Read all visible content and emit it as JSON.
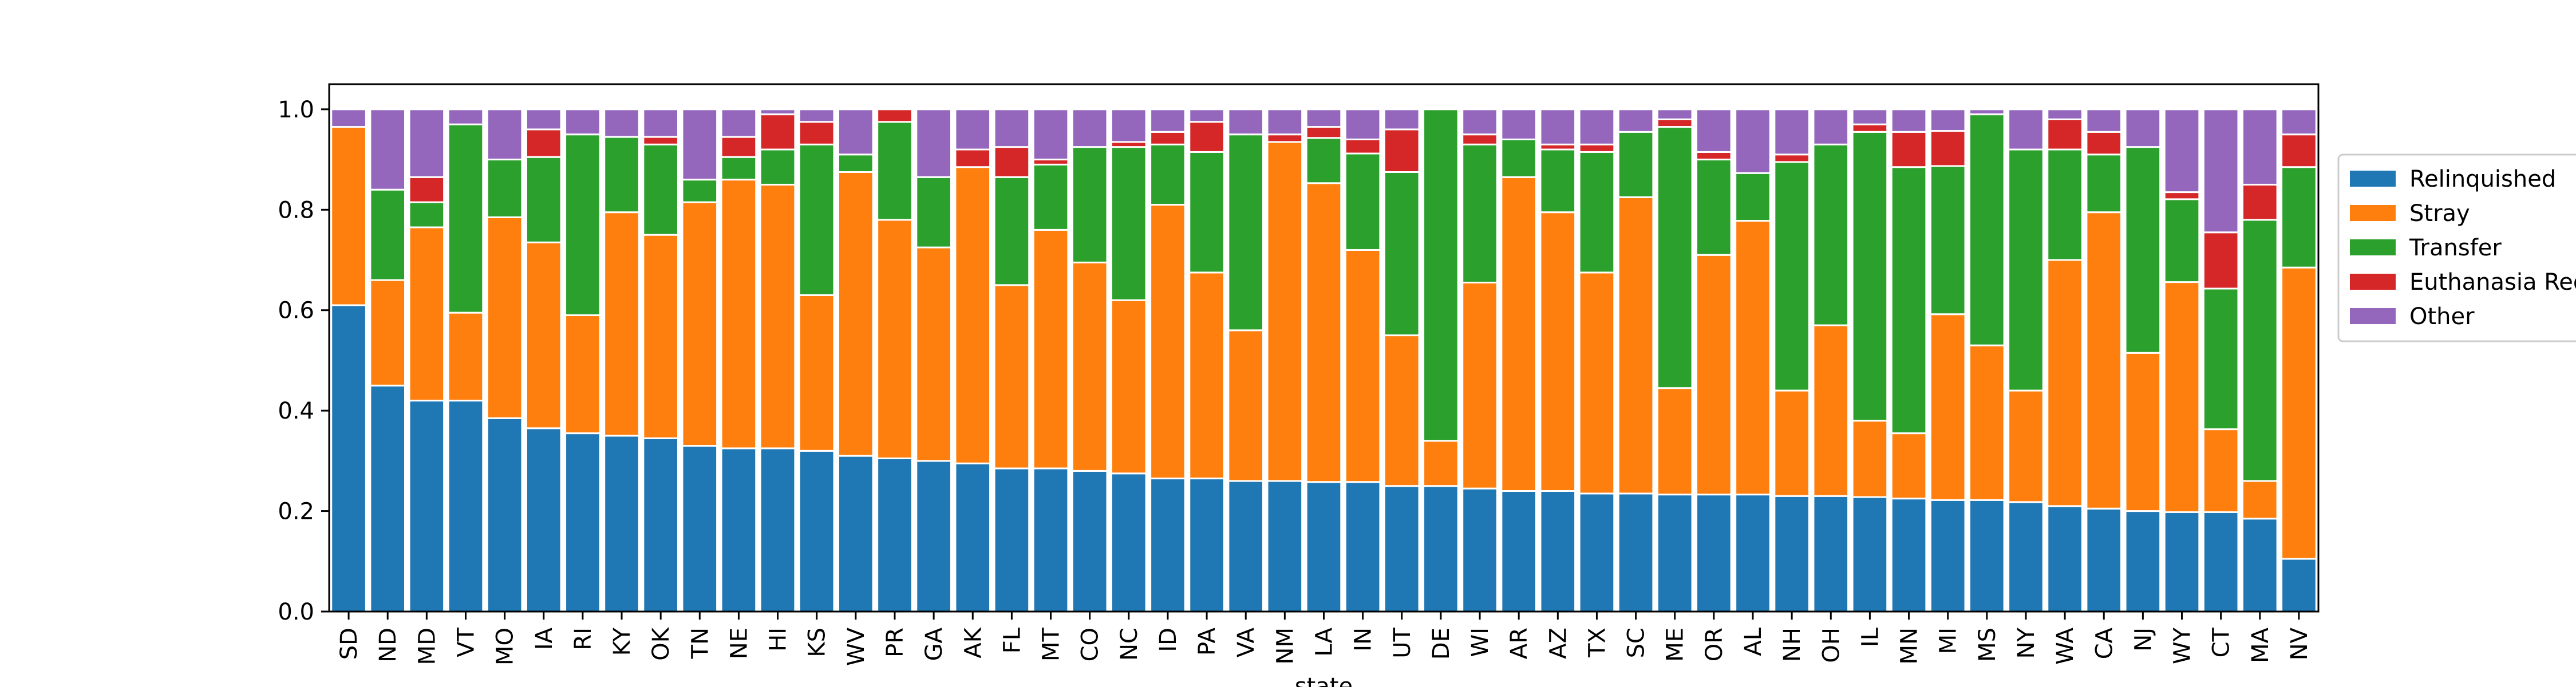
{
  "chart_data": {
    "type": "bar",
    "stacked": true,
    "title": "",
    "xlabel": "state",
    "ylabel": "",
    "ylim": [
      0,
      1.05
    ],
    "yticks": [
      0.0,
      0.2,
      0.4,
      0.6,
      0.8,
      1.0
    ],
    "ytick_labels": [
      "0.0",
      "0.2",
      "0.4",
      "0.6",
      "0.8",
      "1.0"
    ],
    "grid": false,
    "legend_position": "right-outside",
    "categories": [
      "SD",
      "ND",
      "MD",
      "VT",
      "MO",
      "IA",
      "RI",
      "KY",
      "OK",
      "TN",
      "NE",
      "HI",
      "KS",
      "WV",
      "PR",
      "GA",
      "AK",
      "FL",
      "MT",
      "CO",
      "NC",
      "ID",
      "PA",
      "VA",
      "NM",
      "LA",
      "IN",
      "UT",
      "DE",
      "WI",
      "AR",
      "AZ",
      "TX",
      "SC",
      "ME",
      "OR",
      "AL",
      "NH",
      "OH",
      "IL",
      "MN",
      "MI",
      "MS",
      "NY",
      "WA",
      "CA",
      "NJ",
      "WY",
      "CT",
      "MA",
      "NV"
    ],
    "series": [
      {
        "name": "Relinquished",
        "color": "#1f77b4",
        "values": [
          0.61,
          0.45,
          0.42,
          0.42,
          0.385,
          0.365,
          0.355,
          0.35,
          0.345,
          0.33,
          0.325,
          0.325,
          0.32,
          0.31,
          0.305,
          0.3,
          0.295,
          0.285,
          0.285,
          0.28,
          0.275,
          0.265,
          0.265,
          0.26,
          0.26,
          0.258,
          0.258,
          0.25,
          0.25,
          0.245,
          0.24,
          0.24,
          0.235,
          0.235,
          0.233,
          0.233,
          0.233,
          0.23,
          0.23,
          0.228,
          0.225,
          0.222,
          0.222,
          0.218,
          0.21,
          0.205,
          0.2,
          0.198,
          0.198,
          0.185,
          0.105
        ]
      },
      {
        "name": "Stray",
        "color": "#ff7f0e",
        "values": [
          0.355,
          0.21,
          0.345,
          0.175,
          0.4,
          0.37,
          0.235,
          0.445,
          0.405,
          0.485,
          0.535,
          0.525,
          0.31,
          0.565,
          0.475,
          0.425,
          0.59,
          0.365,
          0.475,
          0.415,
          0.345,
          0.545,
          0.41,
          0.3,
          0.675,
          0.595,
          0.462,
          0.3,
          0.09,
          0.41,
          0.625,
          0.555,
          0.44,
          0.59,
          0.212,
          0.477,
          0.545,
          0.21,
          0.34,
          0.152,
          0.13,
          0.37,
          0.308,
          0.222,
          0.49,
          0.59,
          0.315,
          0.458,
          0.165,
          0.075,
          0.58
        ]
      },
      {
        "name": "Transfer",
        "color": "#2ca02c",
        "values": [
          0.0,
          0.18,
          0.05,
          0.375,
          0.115,
          0.17,
          0.36,
          0.15,
          0.18,
          0.045,
          0.045,
          0.07,
          0.3,
          0.035,
          0.195,
          0.14,
          0.0,
          0.215,
          0.13,
          0.23,
          0.305,
          0.12,
          0.24,
          0.39,
          0.0,
          0.09,
          0.192,
          0.325,
          0.66,
          0.275,
          0.075,
          0.125,
          0.24,
          0.13,
          0.52,
          0.19,
          0.095,
          0.455,
          0.36,
          0.575,
          0.53,
          0.295,
          0.46,
          0.48,
          0.22,
          0.115,
          0.41,
          0.165,
          0.28,
          0.52,
          0.2
        ]
      },
      {
        "name": "Euthanasia Requested",
        "color": "#d62728",
        "values": [
          0.0,
          0.0,
          0.05,
          0.0,
          0.0,
          0.055,
          0.0,
          0.0,
          0.015,
          0.0,
          0.04,
          0.07,
          0.045,
          0.0,
          0.025,
          0.0,
          0.035,
          0.06,
          0.01,
          0.0,
          0.01,
          0.025,
          0.06,
          0.0,
          0.015,
          0.022,
          0.028,
          0.085,
          0.0,
          0.02,
          0.0,
          0.01,
          0.015,
          0.0,
          0.015,
          0.015,
          0.0,
          0.015,
          0.0,
          0.015,
          0.07,
          0.07,
          0.0,
          0.0,
          0.06,
          0.045,
          0.0,
          0.014,
          0.112,
          0.07,
          0.065
        ]
      },
      {
        "name": "Other",
        "color": "#9467bd",
        "values": [
          0.035,
          0.16,
          0.135,
          0.03,
          0.1,
          0.04,
          0.05,
          0.055,
          0.055,
          0.14,
          0.055,
          0.01,
          0.025,
          0.09,
          0.0,
          0.135,
          0.08,
          0.075,
          0.1,
          0.075,
          0.065,
          0.045,
          0.025,
          0.05,
          0.05,
          0.035,
          0.06,
          0.04,
          0.0,
          0.05,
          0.06,
          0.07,
          0.07,
          0.045,
          0.02,
          0.085,
          0.127,
          0.09,
          0.07,
          0.03,
          0.045,
          0.043,
          0.01,
          0.08,
          0.02,
          0.045,
          0.075,
          0.165,
          0.245,
          0.15,
          0.05
        ]
      }
    ]
  }
}
